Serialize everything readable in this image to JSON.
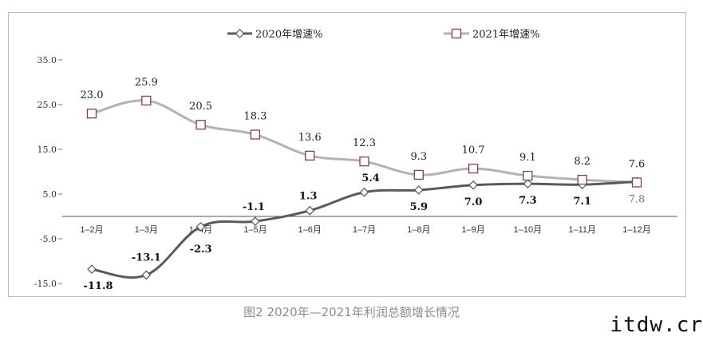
{
  "chart_data": {
    "type": "line",
    "categories": [
      "1–2月",
      "1–3月",
      "1–4月",
      "1–5月",
      "1–6月",
      "1–7月",
      "1–8月",
      "1–9月",
      "1–10月",
      "1–11月",
      "1–12月"
    ],
    "series": [
      {
        "name": "2020年增速%",
        "values": [
          -11.8,
          -13.1,
          -2.3,
          -1.1,
          1.3,
          5.4,
          5.9,
          7.0,
          7.3,
          7.1,
          7.8
        ],
        "labels": [
          "-11.8",
          "-13.1",
          "-2.3",
          "-1.1",
          "1.3",
          "5.4",
          "5.9",
          "7.0",
          "7.3",
          "7.1",
          "7.8"
        ],
        "color": "#5a5a5a",
        "marker": "diamond"
      },
      {
        "name": "2021年增速%",
        "values": [
          23.0,
          25.9,
          20.5,
          18.3,
          13.6,
          12.3,
          9.3,
          10.7,
          9.1,
          8.2,
          7.6
        ],
        "labels": [
          "23.0",
          "25.9",
          "20.5",
          "18.3",
          "13.6",
          "12.3",
          "9.3",
          "10.7",
          "9.1",
          "8.2",
          "7.6"
        ],
        "color": "#b3b3b3",
        "marker": "square",
        "marker_color": "#8b3a55"
      }
    ],
    "y_ticks": [
      "35.0",
      "25.0",
      "15.0",
      "5.0",
      "-5.0",
      "-15.0"
    ],
    "ylim": [
      -15,
      35
    ],
    "legend": "top-center",
    "grid": false
  },
  "caption": "图2  2020年—2021年利润总额增长情况",
  "watermark": "itdw.cr"
}
